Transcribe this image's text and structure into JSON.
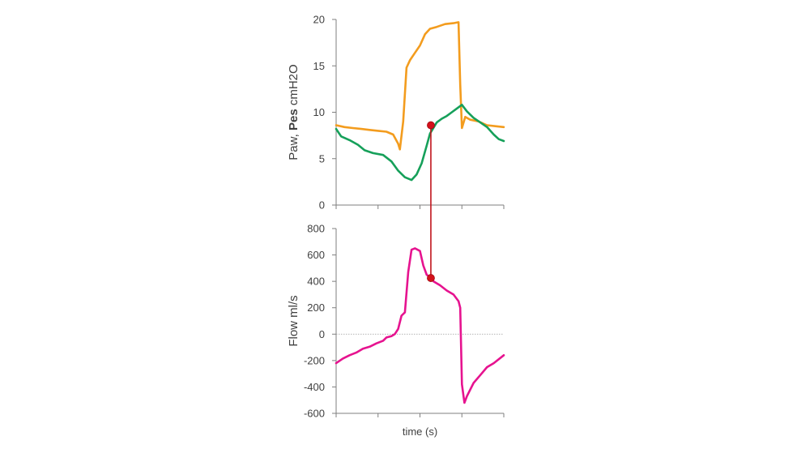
{
  "chart_data": [
    {
      "type": "line",
      "ylabel_parts": [
        {
          "text": "Paw, ",
          "bold": false
        },
        {
          "text": "Pes",
          "bold": true
        },
        {
          "text": " cmH2O",
          "bold": false
        }
      ],
      "ylim": [
        0,
        20
      ],
      "yticks": [
        0,
        5,
        10,
        15,
        20
      ],
      "xticks": 5,
      "series": [
        {
          "color": "#f39c1e",
          "points": [
            [
              0,
              8.6
            ],
            [
              0.05,
              8.4
            ],
            [
              0.1,
              8.3
            ],
            [
              0.15,
              8.2
            ],
            [
              0.2,
              8.1
            ],
            [
              0.25,
              8.0
            ],
            [
              0.3,
              7.9
            ],
            [
              0.34,
              7.6
            ],
            [
              0.37,
              6.6
            ],
            [
              0.38,
              6.0
            ],
            [
              0.4,
              9.0
            ],
            [
              0.42,
              14.8
            ],
            [
              0.44,
              15.6
            ],
            [
              0.47,
              16.4
            ],
            [
              0.5,
              17.2
            ],
            [
              0.53,
              18.4
            ],
            [
              0.56,
              19.0
            ],
            [
              0.6,
              19.2
            ],
            [
              0.65,
              19.5
            ],
            [
              0.7,
              19.6
            ],
            [
              0.73,
              19.7
            ],
            [
              0.74,
              13
            ],
            [
              0.75,
              8.3
            ],
            [
              0.77,
              9.5
            ],
            [
              0.8,
              9.2
            ],
            [
              0.85,
              9.0
            ],
            [
              0.9,
              8.6
            ],
            [
              0.95,
              8.5
            ],
            [
              1.0,
              8.4
            ]
          ]
        },
        {
          "color": "#16a05a",
          "points": [
            [
              0,
              8.2
            ],
            [
              0.03,
              7.4
            ],
            [
              0.08,
              7.0
            ],
            [
              0.13,
              6.5
            ],
            [
              0.17,
              5.9
            ],
            [
              0.22,
              5.6
            ],
            [
              0.28,
              5.4
            ],
            [
              0.33,
              4.7
            ],
            [
              0.37,
              3.7
            ],
            [
              0.41,
              3.0
            ],
            [
              0.45,
              2.7
            ],
            [
              0.48,
              3.3
            ],
            [
              0.51,
              4.5
            ],
            [
              0.54,
              6.4
            ],
            [
              0.56,
              7.7
            ],
            [
              0.6,
              8.9
            ],
            [
              0.63,
              9.3
            ],
            [
              0.66,
              9.6
            ],
            [
              0.69,
              10.0
            ],
            [
              0.72,
              10.4
            ],
            [
              0.75,
              10.8
            ],
            [
              0.78,
              10.1
            ],
            [
              0.82,
              9.4
            ],
            [
              0.86,
              8.9
            ],
            [
              0.9,
              8.4
            ],
            [
              0.94,
              7.6
            ],
            [
              0.97,
              7.1
            ],
            [
              1.0,
              6.9
            ]
          ]
        }
      ],
      "marker": {
        "x": 0.565,
        "y": 8.6,
        "color": "#d4111b"
      }
    },
    {
      "type": "line",
      "ylabel": "Flow ml/s",
      "xlabel": "time (s)",
      "ylim": [
        -600,
        800
      ],
      "yticks": [
        -600,
        -400,
        -200,
        0,
        200,
        400,
        600,
        800
      ],
      "zero_line": true,
      "xticks": 5,
      "series": [
        {
          "color": "#e6138f",
          "points": [
            [
              0,
              -220
            ],
            [
              0.04,
              -185
            ],
            [
              0.08,
              -160
            ],
            [
              0.12,
              -140
            ],
            [
              0.16,
              -110
            ],
            [
              0.2,
              -95
            ],
            [
              0.24,
              -70
            ],
            [
              0.28,
              -50
            ],
            [
              0.3,
              -25
            ],
            [
              0.33,
              -15
            ],
            [
              0.35,
              0
            ],
            [
              0.37,
              40
            ],
            [
              0.39,
              140
            ],
            [
              0.41,
              165
            ],
            [
              0.43,
              470
            ],
            [
              0.45,
              640
            ],
            [
              0.47,
              650
            ],
            [
              0.5,
              630
            ],
            [
              0.52,
              520
            ],
            [
              0.54,
              450
            ],
            [
              0.565,
              425
            ],
            [
              0.58,
              400
            ],
            [
              0.62,
              370
            ],
            [
              0.66,
              330
            ],
            [
              0.7,
              300
            ],
            [
              0.73,
              250
            ],
            [
              0.74,
              200
            ],
            [
              0.75,
              -380
            ],
            [
              0.765,
              -520
            ],
            [
              0.78,
              -470
            ],
            [
              0.82,
              -370
            ],
            [
              0.86,
              -310
            ],
            [
              0.9,
              -250
            ],
            [
              0.94,
              -220
            ],
            [
              1.0,
              -160
            ]
          ]
        }
      ],
      "marker": {
        "x": 0.565,
        "y": 425,
        "color": "#d4111b"
      }
    }
  ]
}
